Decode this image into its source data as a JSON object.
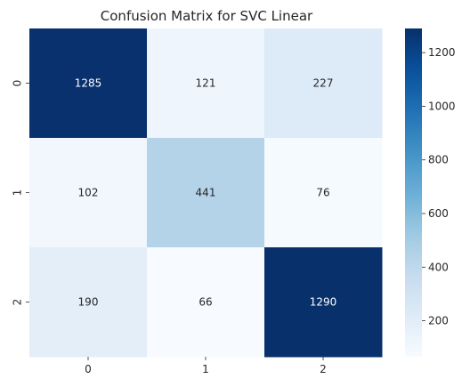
{
  "chart_data": {
    "type": "heatmap",
    "title": "Confusion Matrix for SVC Linear",
    "xlabel": "",
    "ylabel": "",
    "x_categories": [
      "0",
      "1",
      "2"
    ],
    "y_categories": [
      "0",
      "1",
      "2"
    ],
    "values": [
      [
        1285,
        121,
        227
      ],
      [
        102,
        441,
        76
      ],
      [
        190,
        66,
        1290
      ]
    ],
    "colormap": "Blues",
    "color_range": [
      66,
      1290
    ],
    "colorbar_ticks": [
      200,
      400,
      600,
      800,
      1000,
      1200
    ],
    "colorbar_labels": [
      "200",
      "400",
      "600",
      "800",
      "1000",
      "1200"
    ],
    "annotation_colors": {
      "light": "#ffffff",
      "dark": "#262626"
    }
  }
}
